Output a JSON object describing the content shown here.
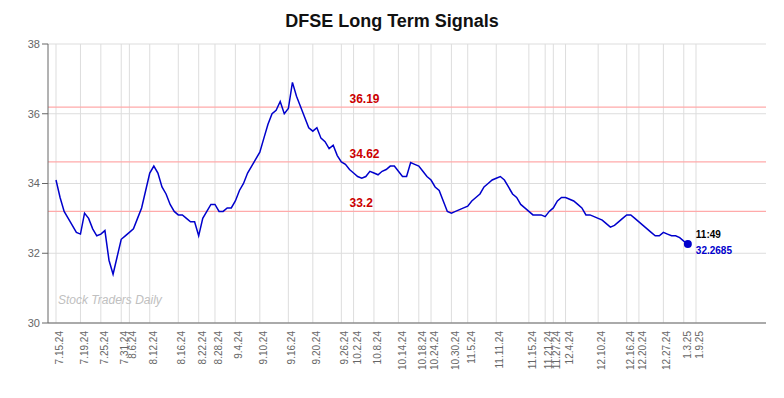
{
  "chart_data": {
    "type": "line",
    "title": "DFSE Long Term Signals",
    "color": "#0000cc",
    "marker": "none",
    "ylim": [
      30,
      38
    ],
    "yticks": [
      30,
      32,
      34,
      36,
      38
    ],
    "grid": true,
    "watermark": "Stock Traders Daily",
    "end_labels": [
      "11:49",
      "32.2685"
    ],
    "reference_lines": [
      {
        "y": 36.19,
        "label": "36.19",
        "color": "#ffaaaa",
        "label_color": "#cc0000"
      },
      {
        "y": 34.62,
        "label": "34.62",
        "color": "#ffaaaa",
        "label_color": "#cc0000"
      },
      {
        "y": 33.2,
        "label": "33.2",
        "color": "#ffaaaa",
        "label_color": "#cc0000"
      }
    ],
    "categories": [
      "7.15.24",
      null,
      null,
      null,
      null,
      null,
      "7.19.24",
      null,
      null,
      null,
      null,
      "7.25.24",
      null,
      null,
      null,
      null,
      "7.31.24",
      null,
      "8.6.24",
      null,
      null,
      null,
      null,
      "8.12.24",
      null,
      null,
      null,
      null,
      null,
      null,
      "8.16.24",
      null,
      null,
      null,
      null,
      "8.22.24",
      null,
      null,
      null,
      "8.28.24",
      null,
      null,
      null,
      null,
      "9.4.24",
      null,
      null,
      null,
      null,
      null,
      "9.10.24",
      null,
      null,
      null,
      null,
      null,
      null,
      "9.16.24",
      null,
      null,
      null,
      null,
      null,
      "9.20.24",
      null,
      null,
      null,
      null,
      null,
      null,
      "9.26.24",
      null,
      null,
      "10.2.24",
      null,
      null,
      null,
      null,
      "10.8.24",
      null,
      null,
      null,
      null,
      null,
      "10.14.24",
      null,
      null,
      null,
      null,
      "10.18.24",
      null,
      null,
      "10.24.24",
      null,
      null,
      null,
      null,
      "10.30.24",
      null,
      null,
      null,
      "11.5.24",
      null,
      null,
      null,
      null,
      null,
      null,
      "11.11.24",
      null,
      null,
      null,
      null,
      null,
      null,
      null,
      "11.15.24",
      null,
      null,
      null,
      "11.21.24",
      null,
      "11.27.24",
      null,
      null,
      "12.4.24",
      null,
      null,
      null,
      null,
      null,
      null,
      null,
      "12.10.24",
      null,
      null,
      null,
      null,
      null,
      null,
      "12.16.24",
      null,
      null,
      "12.20.24",
      null,
      null,
      null,
      null,
      null,
      "12.27.24",
      null,
      null,
      null,
      null,
      "1.3.25",
      null,
      null,
      "1.9.25"
    ],
    "values": [
      34.1,
      33.6,
      33.2,
      33.0,
      32.8,
      32.6,
      32.55,
      33.15,
      33.0,
      32.7,
      32.5,
      32.55,
      32.65,
      31.8,
      31.4,
      31.9,
      32.4,
      32.5,
      32.6,
      32.7,
      33.0,
      33.3,
      33.8,
      34.3,
      34.5,
      34.3,
      33.9,
      33.7,
      33.4,
      33.2,
      33.1,
      33.1,
      33.0,
      32.9,
      32.9,
      32.5,
      33.0,
      33.2,
      33.4,
      33.4,
      33.2,
      33.2,
      33.3,
      33.3,
      33.5,
      33.8,
      34.0,
      34.3,
      34.5,
      34.7,
      34.9,
      35.3,
      35.7,
      36.0,
      36.1,
      36.35,
      36.0,
      36.15,
      36.9,
      36.5,
      36.2,
      35.9,
      35.6,
      35.5,
      35.6,
      35.3,
      35.2,
      35.0,
      35.1,
      34.8,
      34.62,
      34.55,
      34.4,
      34.3,
      34.2,
      34.15,
      34.2,
      34.35,
      34.3,
      34.25,
      34.35,
      34.4,
      34.5,
      34.5,
      34.35,
      34.2,
      34.2,
      34.6,
      34.55,
      34.5,
      34.35,
      34.2,
      34.1,
      33.9,
      33.8,
      33.5,
      33.2,
      33.15,
      33.2,
      33.25,
      33.3,
      33.35,
      33.5,
      33.6,
      33.7,
      33.9,
      34.0,
      34.1,
      34.15,
      34.2,
      34.1,
      33.9,
      33.7,
      33.6,
      33.4,
      33.3,
      33.2,
      33.1,
      33.1,
      33.1,
      33.05,
      33.2,
      33.3,
      33.5,
      33.6,
      33.6,
      33.55,
      33.5,
      33.4,
      33.3,
      33.1,
      33.1,
      33.05,
      33.0,
      32.95,
      32.85,
      32.75,
      32.8,
      32.9,
      33.0,
      33.1,
      33.1,
      33.0,
      32.9,
      32.8,
      32.7,
      32.6,
      32.5,
      32.5,
      32.6,
      32.55,
      32.5,
      32.5,
      32.45,
      32.35,
      32.2685,
      null,
      null
    ]
  }
}
